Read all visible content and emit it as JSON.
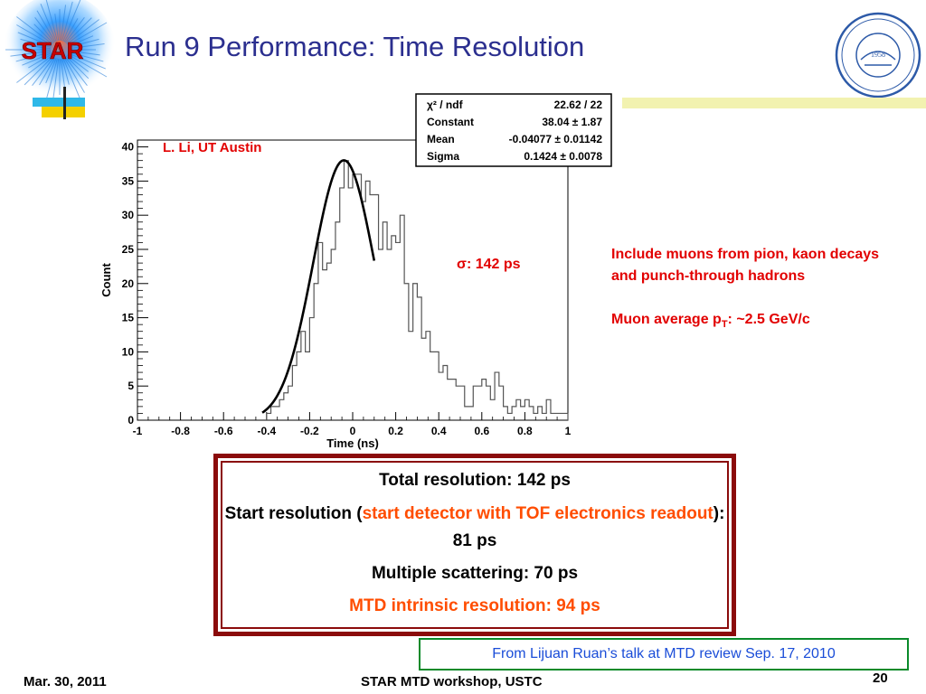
{
  "slide": {
    "title": "Run 9 Performance: Time Resolution",
    "logo_left_text": "STAR",
    "logo_right_text": "1958"
  },
  "chart_data": {
    "type": "histogram",
    "xlabel": "Time (ns)",
    "ylabel": "Count",
    "xlim": [
      -1,
      1
    ],
    "ylim": [
      0,
      41
    ],
    "xticks": [
      -1,
      -0.8,
      -0.6,
      -0.4,
      -0.2,
      0,
      0.2,
      0.4,
      0.6,
      0.8,
      1
    ],
    "xtick_labels": [
      "-1",
      "-0.8",
      "-0.6",
      "-0.4",
      "-0.2",
      "0",
      "0.2",
      "0.4",
      "0.6",
      "0.8",
      "1"
    ],
    "yticks": [
      0,
      5,
      10,
      15,
      20,
      25,
      30,
      35,
      40
    ],
    "ytick_labels": [
      "0",
      "5",
      "10",
      "15",
      "20",
      "25",
      "30",
      "35",
      "40"
    ],
    "bins": {
      "start": -0.4,
      "width": 0.02,
      "counts": [
        1,
        2,
        2,
        3,
        4,
        5,
        8,
        10,
        13,
        10,
        15,
        20,
        26,
        22,
        23,
        25,
        29,
        34,
        38,
        34,
        36,
        36,
        32,
        35,
        33,
        33,
        25,
        29,
        25,
        27,
        26,
        30,
        20,
        13,
        20,
        18,
        12,
        13,
        10,
        10,
        7,
        8,
        6,
        6,
        5,
        5,
        2,
        2,
        5,
        5,
        6,
        5,
        3,
        7,
        5,
        2,
        1,
        2,
        3,
        2,
        3,
        2,
        1,
        2,
        1,
        3,
        1,
        1,
        1,
        1
      ]
    },
    "fit": {
      "constant": 38.04,
      "mean": -0.04077,
      "sigma": 0.1424,
      "range": [
        -0.42,
        0.1
      ]
    },
    "stats_box": [
      {
        "label": "χ² / ndf",
        "value": "22.62 / 22"
      },
      {
        "label": "Constant",
        "value": "38.04 ± 1.87"
      },
      {
        "label": "Mean",
        "value": "-0.04077 ± 0.01142"
      },
      {
        "label": "Sigma",
        "value": "0.1424 ± 0.0078"
      }
    ],
    "annotations": {
      "author": "L. Li, UT Austin",
      "sigma": "σ: 142 ps"
    },
    "colors": {
      "histogram": "#555555",
      "fit": "#000000",
      "annotation": "#e20000"
    }
  },
  "notes": {
    "line1": "Include muons from pion, kaon decays  and punch-through hadrons",
    "line2_pre": "Muon average p",
    "line2_sub": "T",
    "line2_post": ": ~2.5 GeV/c"
  },
  "summary": {
    "total": "Total resolution: 142 ps",
    "start_pre": "Start resolution (",
    "start_highlight": "start detector with TOF electronics readout",
    "start_post": "): 81 ps",
    "scattering": "Multiple scattering: 70 ps",
    "intrinsic": "MTD intrinsic resolution: 94 ps"
  },
  "source": "From Lijuan Ruan’s talk at MTD review Sep. 17, 2010",
  "footer": {
    "date": "Mar. 30, 2011",
    "event": "STAR MTD workshop, USTC",
    "page": "20"
  },
  "colors": {
    "title": "#2b2f8f",
    "red": "#e20000",
    "orange": "#ff4d00",
    "box_border": "#8b0b0b",
    "source_border": "#0a8a2a",
    "source_text": "#1a4dd8"
  }
}
